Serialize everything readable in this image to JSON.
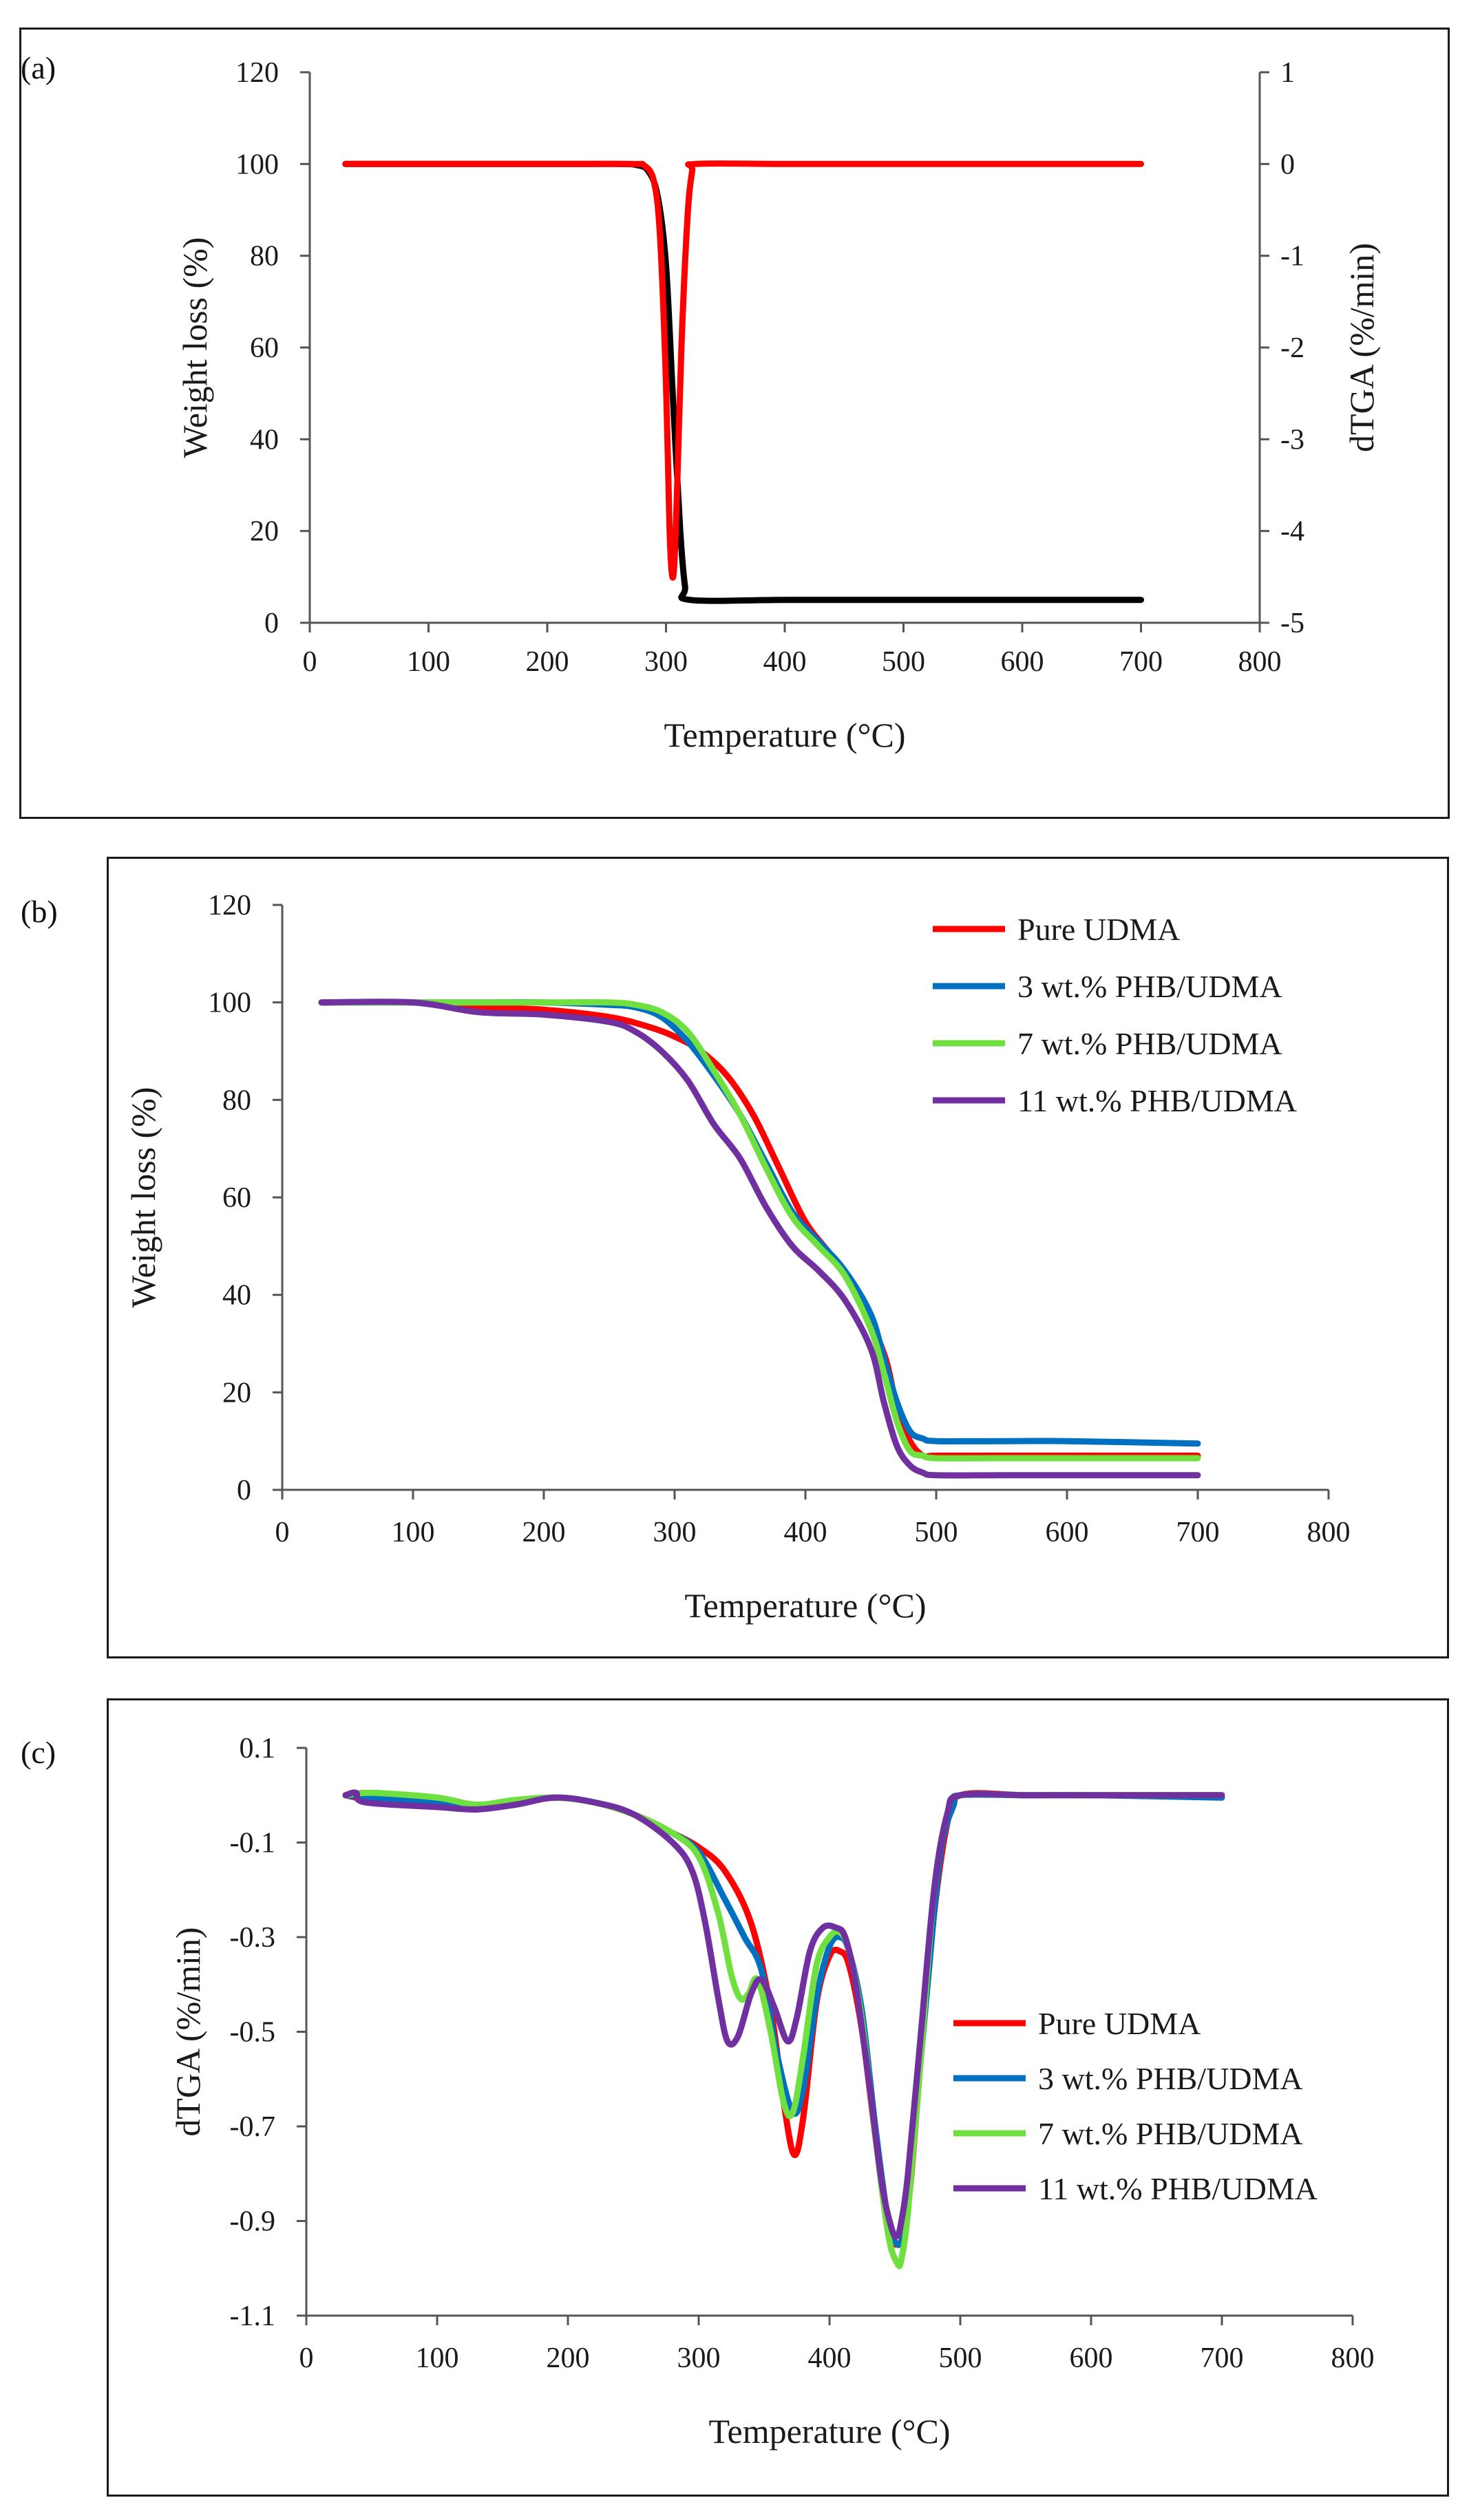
{
  "panels": [
    {
      "label": "(a)",
      "chart_data": {
        "type": "line",
        "xlabel": "Temperature (°C)",
        "ylabel": "Weight loss (%)",
        "y2label": "dTGA (%/min)",
        "xlim": [
          0,
          800
        ],
        "ylim": [
          0,
          120
        ],
        "y2lim": [
          -5,
          1
        ],
        "xticks": [
          "0",
          "100",
          "200",
          "300",
          "400",
          "500",
          "600",
          "700",
          "800"
        ],
        "yticks": [
          "0",
          "20",
          "40",
          "60",
          "80",
          "100",
          "120"
        ],
        "y2ticks": [
          "-5",
          "-4",
          "-3",
          "-2",
          "-1",
          "0",
          "1"
        ],
        "series": [
          {
            "name": "Weight loss",
            "axis": "left",
            "color": "#000000",
            "x": [
              30,
              100,
              200,
              260,
              275,
              285,
              293,
              300,
              306,
              312,
              316,
              320,
              400,
              500,
              600,
              700
            ],
            "y": [
              100,
              100,
              100,
              100,
              99.8,
              98.5,
              93,
              78,
              48,
              20,
              8,
              5,
              5,
              5,
              5,
              5
            ]
          },
          {
            "name": "dTGA",
            "axis": "right",
            "color": "#ff0000",
            "x": [
              30,
              100,
              200,
              270,
              282,
              290,
              295,
              300,
              303,
              306,
              309,
              313,
              318,
              322,
              325,
              400,
              500,
              600,
              700
            ],
            "y": [
              0,
              0,
              0,
              0,
              -0.02,
              -0.2,
              -0.8,
              -2.4,
              -4.0,
              -4.5,
              -3.7,
              -2.0,
              -0.6,
              -0.08,
              0,
              0,
              0,
              0,
              0
            ]
          }
        ]
      }
    },
    {
      "label": "(b)",
      "chart_data": {
        "type": "line",
        "xlabel": "Temperature (°C)",
        "ylabel": "Weight loss (%)",
        "xlim": [
          0,
          800
        ],
        "ylim": [
          0,
          120
        ],
        "xticks": [
          "0",
          "100",
          "200",
          "300",
          "400",
          "500",
          "600",
          "700",
          "800"
        ],
        "yticks": [
          "0",
          "20",
          "40",
          "60",
          "80",
          "100",
          "120"
        ],
        "legend": "top-right",
        "series": [
          {
            "name": "Pure UDMA",
            "color": "#ff0000",
            "x": [
              30,
              100,
              150,
              200,
              250,
              280,
              300,
              320,
              340,
              360,
              380,
              400,
              420,
              440,
              460,
              470,
              480,
              490,
              500,
              550,
              600,
              700
            ],
            "y": [
              100,
              100,
              99,
              98.5,
              97,
              95,
              93,
              90,
              85,
              77,
              66,
              55,
              48,
              40,
              28,
              17,
              10,
              7,
              7,
              7,
              7,
              7
            ]
          },
          {
            "name": "3 wt.% PHB/UDMA",
            "color": "#0070c0",
            "x": [
              30,
              100,
              150,
              200,
              250,
              270,
              290,
              310,
              330,
              350,
              370,
              390,
              410,
              430,
              450,
              460,
              470,
              480,
              490,
              500,
              550,
              600,
              700
            ],
            "y": [
              100,
              100,
              100,
              100,
              99.5,
              99,
              97,
              92,
              85,
              77,
              67,
              57,
              51,
              45,
              36,
              27,
              18,
              12,
              10.5,
              10,
              10,
              10,
              9.5
            ]
          },
          {
            "name": "7 wt.% PHB/UDMA",
            "color": "#70e040",
            "x": [
              30,
              100,
              150,
              200,
              250,
              270,
              290,
              310,
              330,
              350,
              370,
              390,
              410,
              430,
              450,
              460,
              470,
              480,
              490,
              500,
              550,
              600,
              700
            ],
            "y": [
              100,
              100,
              100,
              100,
              100,
              99.5,
              98,
              94,
              86,
              77,
              66,
              56,
              50,
              44,
              33,
              24,
              14,
              8,
              7,
              6.5,
              6.5,
              6.5,
              6.5
            ]
          },
          {
            "name": "11 wt.% PHB/UDMA",
            "color": "#7030a0",
            "x": [
              30,
              100,
              150,
              200,
              250,
              270,
              290,
              310,
              330,
              350,
              370,
              390,
              410,
              430,
              450,
              460,
              470,
              480,
              490,
              500,
              550,
              600,
              700
            ],
            "y": [
              100,
              100,
              98,
              97.5,
              96,
              94,
              90,
              84,
              75,
              68,
              58,
              50,
              45,
              39,
              29,
              18,
              9,
              5,
              3.5,
              3,
              3,
              3,
              3
            ]
          }
        ]
      }
    },
    {
      "label": "(c)",
      "chart_data": {
        "type": "line",
        "xlabel": "Temperature (°C)",
        "ylabel": "dTGA (%/min)",
        "xlim": [
          0,
          800
        ],
        "ylim": [
          -1.1,
          0.1
        ],
        "xticks": [
          "0",
          "100",
          "200",
          "300",
          "400",
          "500",
          "600",
          "700",
          "800"
        ],
        "yticks": [
          "-1.1",
          "-0.9",
          "-0.7",
          "-0.5",
          "-0.3",
          "-0.1",
          "0.1"
        ],
        "legend": "bottom-right",
        "series": [
          {
            "name": "Pure UDMA",
            "color": "#ff0000",
            "x": [
              30,
              50,
              100,
              130,
              160,
              190,
              220,
              250,
              280,
              300,
              320,
              340,
              355,
              365,
              373,
              380,
              390,
              400,
              408,
              415,
              425,
              435,
              445,
              452,
              456,
              462,
              470,
              480,
              490,
              500,
              550,
              600,
              700
            ],
            "y": [
              0,
              -0.01,
              -0.02,
              -0.03,
              -0.015,
              -0.005,
              -0.015,
              -0.04,
              -0.08,
              -0.11,
              -0.16,
              -0.27,
              -0.45,
              -0.65,
              -0.76,
              -0.68,
              -0.44,
              -0.34,
              -0.33,
              -0.36,
              -0.5,
              -0.72,
              -0.92,
              -0.95,
              -0.93,
              -0.82,
              -0.55,
              -0.25,
              -0.06,
              0,
              0,
              0,
              0
            ]
          },
          {
            "name": "3 wt.% PHB/UDMA",
            "color": "#0070c0",
            "x": [
              30,
              50,
              100,
              130,
              160,
              190,
              220,
              250,
              280,
              300,
              320,
              335,
              348,
              360,
              372,
              380,
              390,
              400,
              408,
              415,
              425,
              435,
              445,
              453,
              458,
              465,
              475,
              485,
              495,
              500,
              550,
              600,
              700
            ],
            "y": [
              0,
              -0.005,
              -0.015,
              -0.025,
              -0.015,
              -0.005,
              -0.015,
              -0.04,
              -0.08,
              -0.12,
              -0.22,
              -0.3,
              -0.37,
              -0.55,
              -0.67,
              -0.62,
              -0.43,
              -0.32,
              -0.3,
              -0.33,
              -0.46,
              -0.7,
              -0.9,
              -0.95,
              -0.9,
              -0.7,
              -0.4,
              -0.12,
              -0.02,
              0,
              0,
              0,
              -0.005
            ]
          },
          {
            "name": "7 wt.% PHB/UDMA",
            "color": "#70e040",
            "x": [
              30,
              50,
              100,
              130,
              160,
              190,
              220,
              250,
              280,
              300,
              315,
              325,
              332,
              338,
              345,
              355,
              365,
              372,
              380,
              390,
              400,
              408,
              415,
              425,
              435,
              445,
              452,
              455,
              460,
              470,
              480,
              490,
              500,
              550,
              600,
              700
            ],
            "y": [
              0,
              0.005,
              -0.005,
              -0.02,
              -0.01,
              -0.005,
              -0.015,
              -0.04,
              -0.08,
              -0.13,
              -0.25,
              -0.38,
              -0.43,
              -0.42,
              -0.39,
              -0.5,
              -0.65,
              -0.67,
              -0.55,
              -0.36,
              -0.3,
              -0.29,
              -0.33,
              -0.48,
              -0.72,
              -0.93,
              -0.99,
              -0.98,
              -0.88,
              -0.55,
              -0.2,
              -0.04,
              0,
              0,
              0,
              0
            ]
          },
          {
            "name": "11 wt.% PHB/UDMA",
            "color": "#7030a0",
            "x": [
              30,
              38,
              45,
              100,
              130,
              160,
              190,
              220,
              250,
              280,
              295,
              305,
              315,
              322,
              330,
              340,
              348,
              358,
              368,
              375,
              385,
              395,
              405,
              412,
              420,
              430,
              440,
              448,
              452,
              455,
              460,
              470,
              480,
              490,
              500,
              550,
              600,
              700
            ],
            "y": [
              0,
              0.005,
              -0.015,
              -0.025,
              -0.03,
              -0.02,
              -0.005,
              -0.015,
              -0.04,
              -0.1,
              -0.16,
              -0.27,
              -0.43,
              -0.52,
              -0.51,
              -0.42,
              -0.39,
              -0.45,
              -0.52,
              -0.47,
              -0.33,
              -0.28,
              -0.28,
              -0.3,
              -0.4,
              -0.6,
              -0.82,
              -0.92,
              -0.93,
              -0.9,
              -0.8,
              -0.5,
              -0.2,
              -0.04,
              0,
              0,
              0,
              0
            ]
          }
        ]
      }
    }
  ]
}
